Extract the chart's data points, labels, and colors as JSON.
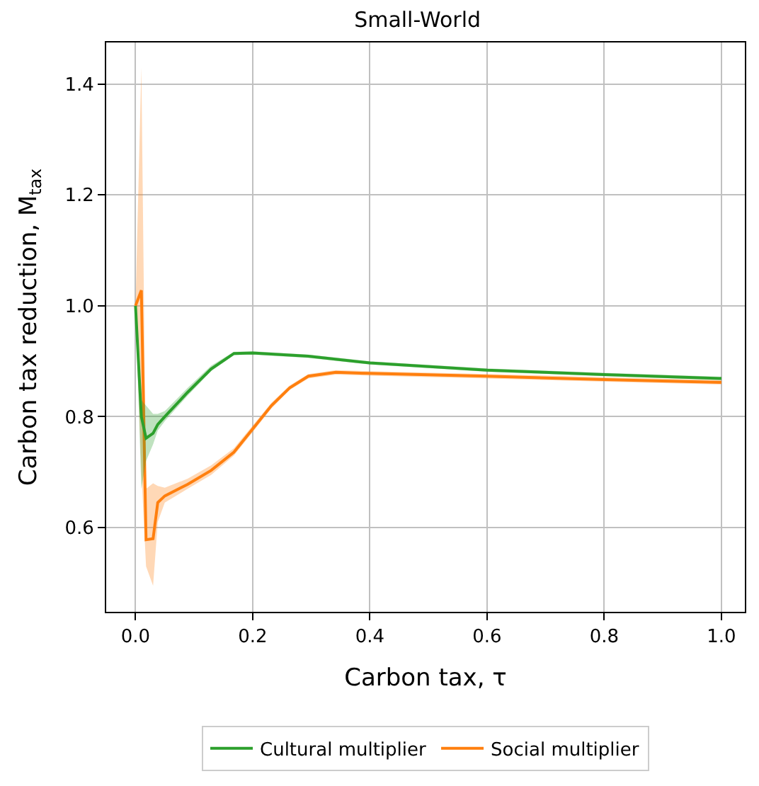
{
  "chart_data": {
    "type": "line",
    "title": "Small-World",
    "xlabel": "Carbon tax, τ",
    "ylabel": "Carbon tax reduction, M$_{tax}$",
    "xlim": [
      -0.05,
      1.04
    ],
    "ylim": [
      0.448,
      1.475
    ],
    "xticks": [
      {
        "value": 0,
        "label": "0.0"
      },
      0.2,
      0.4,
      0.6,
      0.8,
      {
        "value": 1,
        "label": "1.0"
      }
    ],
    "yticks": [
      0.6,
      0.8,
      {
        "value": 1,
        "label": "1.0"
      },
      1.2,
      1.4
    ],
    "grid": true,
    "legend": "bottom",
    "marker": "none",
    "line_style": "solid",
    "series": [
      {
        "name": "Social multiplier",
        "color": "#ff7f0e",
        "x": [
          0,
          0.01,
          0.018,
          0.03,
          0.038,
          0.05,
          0.089,
          0.129,
          0.168,
          0.2,
          0.232,
          0.263,
          0.295,
          0.342,
          0.4,
          0.6,
          0.8,
          1.0
        ],
        "values": [
          1.0,
          1.028,
          0.578,
          0.58,
          0.645,
          0.657,
          0.678,
          0.703,
          0.736,
          0.778,
          0.82,
          0.852,
          0.873,
          0.88,
          0.878,
          0.873,
          0.867,
          0.862
        ],
        "lower": [
          1.0,
          0.7,
          0.53,
          0.495,
          0.61,
          0.645,
          0.67,
          0.695,
          0.73,
          0.772,
          0.815,
          0.848,
          0.869,
          0.876,
          0.874,
          0.869,
          0.863,
          0.858
        ],
        "upper": [
          1.0,
          1.43,
          0.67,
          0.68,
          0.675,
          0.672,
          0.688,
          0.712,
          0.743,
          0.784,
          0.825,
          0.856,
          0.877,
          0.884,
          0.882,
          0.877,
          0.871,
          0.866
        ]
      },
      {
        "name": "Cultural multiplier",
        "color": "#2ca02c",
        "x": [
          0,
          0.01,
          0.018,
          0.03,
          0.038,
          0.05,
          0.089,
          0.129,
          0.168,
          0.2,
          0.295,
          0.4,
          0.6,
          0.8,
          1.0
        ],
        "values": [
          1.0,
          0.8,
          0.761,
          0.77,
          0.786,
          0.8,
          0.844,
          0.886,
          0.914,
          0.915,
          0.909,
          0.897,
          0.884,
          0.876,
          0.869
        ],
        "lower": [
          1.0,
          0.67,
          0.72,
          0.75,
          0.775,
          0.792,
          0.838,
          0.882,
          0.911,
          0.912,
          0.906,
          0.894,
          0.881,
          0.873,
          0.866
        ],
        "upper": [
          1.0,
          0.83,
          0.82,
          0.805,
          0.805,
          0.81,
          0.852,
          0.892,
          0.917,
          0.918,
          0.912,
          0.9,
          0.887,
          0.879,
          0.872
        ]
      }
    ]
  }
}
